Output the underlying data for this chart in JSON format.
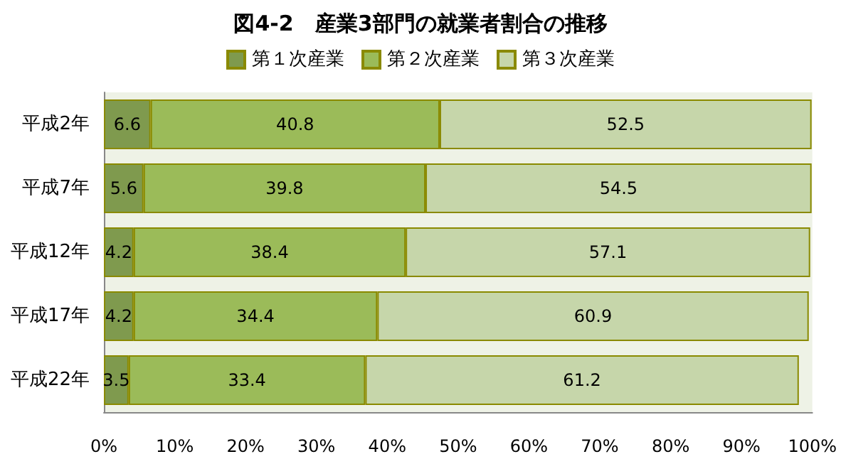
{
  "chart_data": {
    "type": "bar",
    "orientation": "horizontal",
    "stacked": true,
    "title": "図4-2　産業3部門の就業者割合の推移",
    "categories": [
      "平成2年",
      "平成7年",
      "平成12年",
      "平成17年",
      "平成22年"
    ],
    "series": [
      {
        "name": "第１次産業",
        "color": "#7f9a4e",
        "values": [
          6.6,
          5.6,
          4.2,
          4.2,
          3.5
        ],
        "value_labels": [
          "6.6",
          "5.6",
          "4.2",
          "4.2",
          "3.5"
        ]
      },
      {
        "name": "第２次産業",
        "color": "#9bbb59",
        "values": [
          40.8,
          39.8,
          38.4,
          34.4,
          33.4
        ],
        "value_labels": [
          "40.8",
          "39.8",
          "38.4",
          "34.4",
          "33.4"
        ]
      },
      {
        "name": "第３次産業",
        "color": "#c6d6aa",
        "values": [
          52.5,
          54.5,
          57.1,
          60.9,
          61.2
        ],
        "value_labels": [
          "52.5",
          "54.5",
          "57.1",
          "60.9",
          "61.2"
        ]
      }
    ],
    "xlim": [
      0,
      100
    ],
    "xticks": [
      {
        "value": 0,
        "label": "0%"
      },
      {
        "value": 10,
        "label": "10%"
      },
      {
        "value": 20,
        "label": "20%"
      },
      {
        "value": 30,
        "label": "30%"
      },
      {
        "value": 40,
        "label": "40%"
      },
      {
        "value": 50,
        "label": "50%"
      },
      {
        "value": 60,
        "label": "60%"
      },
      {
        "value": 70,
        "label": "70%"
      },
      {
        "value": 80,
        "label": "80%"
      },
      {
        "value": 90,
        "label": "90%"
      },
      {
        "value": 100,
        "label": "100%"
      }
    ],
    "grid": false,
    "legend": "top"
  }
}
